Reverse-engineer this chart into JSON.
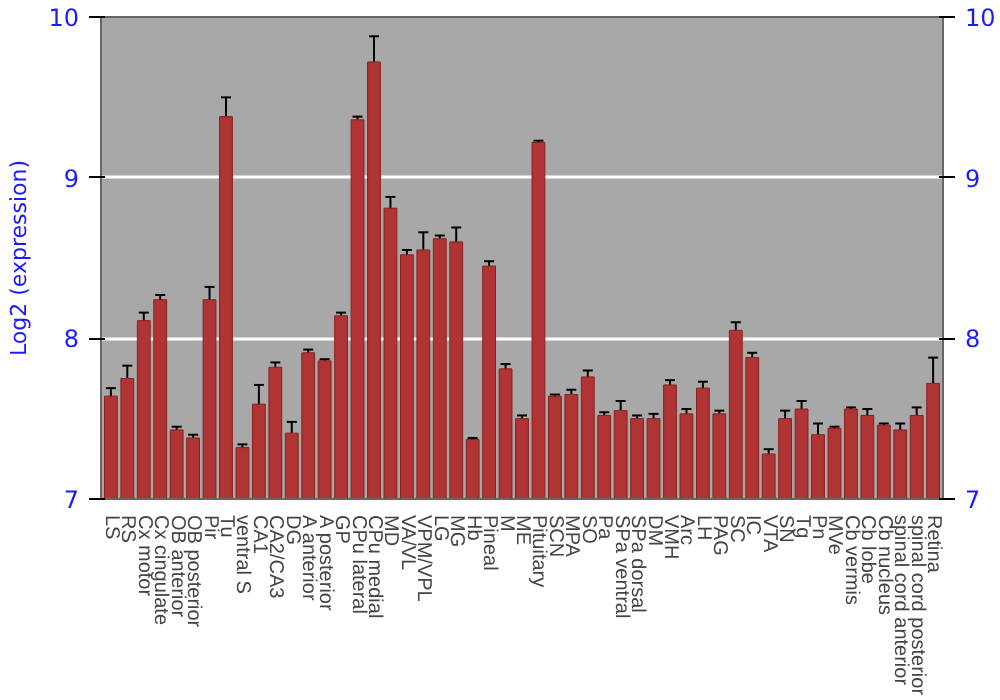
{
  "chart_data": {
    "type": "bar",
    "ylabel": "Log2 (expression)",
    "categories": [
      "LS",
      "RS",
      "Cx motor",
      "Cx cingulate",
      "OB anterior",
      "OB posterior",
      "Pir",
      "Tu",
      "ventral S",
      "CA1",
      "CA2/CA3",
      "DG",
      "A anterior",
      "A posterior",
      "GP",
      "CPu lateral",
      "CPu medial",
      "MD",
      "VA/VL",
      "VPM/VPL",
      "LG",
      "MG",
      "Hb",
      "Pineal",
      "M",
      "ME",
      "Pituitary",
      "SCN",
      "MPA",
      "SO",
      "Pa",
      "SPa ventral",
      "SPa dorsal",
      "DM",
      "VMH",
      "Arc",
      "LH",
      "PAG",
      "SC",
      "IC",
      "VTA",
      "SN",
      "Tg",
      "Pn",
      "MVe",
      "Cb vermis",
      "Cb lobe",
      "Cb nucleus",
      "spinal cord anterior",
      "spinal cord posterior",
      "Retina"
    ],
    "values": [
      7.64,
      7.75,
      8.11,
      8.24,
      7.43,
      7.38,
      8.24,
      9.38,
      7.32,
      7.59,
      7.82,
      7.41,
      7.91,
      7.86,
      8.14,
      9.36,
      9.72,
      8.81,
      8.52,
      8.55,
      8.62,
      8.6,
      7.37,
      8.45,
      7.81,
      7.5,
      9.22,
      7.64,
      7.65,
      7.76,
      7.52,
      7.55,
      7.5,
      7.5,
      7.71,
      7.53,
      7.69,
      7.53,
      8.05,
      7.88,
      7.28,
      7.5,
      7.56,
      7.4,
      7.44,
      7.56,
      7.52,
      7.46,
      7.43,
      7.52,
      7.72
    ],
    "errors": [
      0.05,
      0.08,
      0.05,
      0.03,
      0.02,
      0.02,
      0.08,
      0.12,
      0.02,
      0.12,
      0.03,
      0.07,
      0.02,
      0.01,
      0.02,
      0.02,
      0.16,
      0.07,
      0.03,
      0.11,
      0.02,
      0.09,
      0.01,
      0.03,
      0.03,
      0.02,
      0.01,
      0.01,
      0.03,
      0.04,
      0.02,
      0.06,
      0.02,
      0.03,
      0.03,
      0.03,
      0.04,
      0.02,
      0.05,
      0.03,
      0.03,
      0.05,
      0.05,
      0.07,
      0.01,
      0.01,
      0.04,
      0.01,
      0.04,
      0.05,
      0.16
    ],
    "color": "#b03434",
    "ylim": [
      7,
      10
    ],
    "yticks": [
      7,
      8,
      9,
      10
    ],
    "y2lim": [
      7,
      10
    ],
    "y2ticks": [
      7,
      8,
      9,
      10
    ],
    "grid": "y"
  }
}
